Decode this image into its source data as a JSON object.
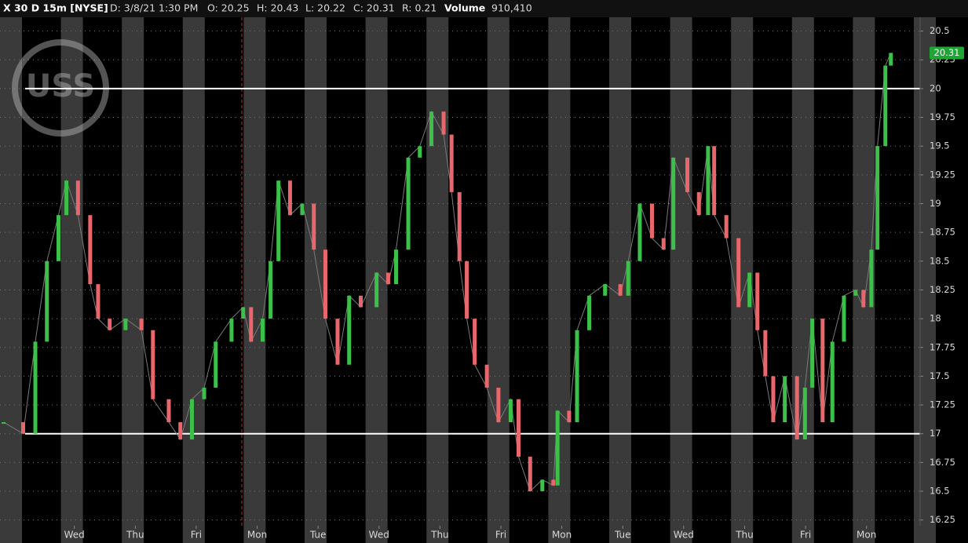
{
  "header": {
    "symbol": "X 30 D 15m [NYSE]",
    "date": "D: 3/8/21 1:30 PM",
    "open": "O: 20.25",
    "high": "H: 20.43",
    "low": "L: 20.22",
    "close": "C: 20.31",
    "range": "R: 0.21",
    "volume_label": "Volume",
    "volume": "910,410"
  },
  "logo": "USS",
  "chart_data": {
    "type": "line",
    "x": [
      -1.16,
      -0.84,
      -0.64,
      -0.45,
      -0.26,
      -0.13,
      0.06,
      0.26,
      0.39,
      0.58,
      0.84,
      1.1,
      1.29,
      1.55,
      1.74,
      1.93,
      2.13,
      2.32,
      2.58,
      2.77,
      2.9,
      3.09,
      3.22,
      3.35,
      3.54,
      3.74,
      3.93,
      4.12,
      4.32,
      4.51,
      4.7,
      4.96,
      5.15,
      5.28,
      5.48,
      5.67,
      5.86,
      6.06,
      6.19,
      6.32,
      6.44,
      6.57,
      6.77,
      6.96,
      7.16,
      7.29,
      7.48,
      7.68,
      7.86,
      7.93,
      8.12,
      8.25,
      8.45,
      8.71,
      8.96,
      9.09,
      9.28,
      9.48,
      9.67,
      9.83,
      10.06,
      10.25,
      10.4,
      10.5,
      10.7,
      10.9,
      11.08,
      11.21,
      11.34,
      11.47,
      11.66,
      11.86,
      11.99,
      12.11,
      12.28,
      12.44,
      12.63,
      12.82,
      12.95,
      13.08,
      13.18,
      13.31,
      13.4
    ],
    "series": [
      {
        "color": "#3cc04a",
        "down_color": "#e8676c",
        "values": [
          17.1,
          17.0,
          17.8,
          18.5,
          18.9,
          19.2,
          18.9,
          18.3,
          18.0,
          17.9,
          18.0,
          17.9,
          17.3,
          17.1,
          16.95,
          17.3,
          17.4,
          17.8,
          18.0,
          18.1,
          17.8,
          18.0,
          18.5,
          19.2,
          18.9,
          19.0,
          18.6,
          18.0,
          17.6,
          18.2,
          18.1,
          18.4,
          18.3,
          18.6,
          19.4,
          19.5,
          19.8,
          19.6,
          19.1,
          18.5,
          18.0,
          17.6,
          17.4,
          17.1,
          17.3,
          16.8,
          16.5,
          16.6,
          16.55,
          17.2,
          17.1,
          17.9,
          18.2,
          18.3,
          18.2,
          18.5,
          19.0,
          18.7,
          18.6,
          19.4,
          19.1,
          18.9,
          19.5,
          18.9,
          18.7,
          18.1,
          18.4,
          17.9,
          17.5,
          17.1,
          17.5,
          16.95,
          17.4,
          18.0,
          17.1,
          17.8,
          18.2,
          18.25,
          18.1,
          18.6,
          19.5,
          20.2,
          20.31
        ]
      }
    ],
    "hlines": [
      20,
      17
    ],
    "xlim": [
      -1.22,
      13.88
    ],
    "xticks": [
      {
        "value": 0,
        "label": "Wed"
      },
      {
        "value": 1,
        "label": "Thu"
      },
      {
        "value": 2,
        "label": "Fri"
      },
      {
        "value": 3,
        "label": "Mon"
      },
      {
        "value": 4,
        "label": "Tue"
      },
      {
        "value": 5,
        "label": "Wed"
      },
      {
        "value": 6,
        "label": "Thu"
      },
      {
        "value": 7,
        "label": "Fri"
      },
      {
        "value": 8,
        "label": "Mon"
      },
      {
        "value": 9,
        "label": "Tue"
      },
      {
        "value": 10,
        "label": "Wed"
      },
      {
        "value": 11,
        "label": "Thu"
      },
      {
        "value": 12,
        "label": "Fri"
      },
      {
        "value": 13,
        "label": "Mon"
      }
    ],
    "ylim": [
      16.2,
      20.62
    ],
    "yticks": [
      16.25,
      16.5,
      16.75,
      17,
      17.25,
      17.5,
      17.75,
      18,
      18.25,
      18.5,
      18.75,
      19,
      19.25,
      19.5,
      19.75,
      20,
      20.25,
      20.5
    ],
    "grid": true
  }
}
